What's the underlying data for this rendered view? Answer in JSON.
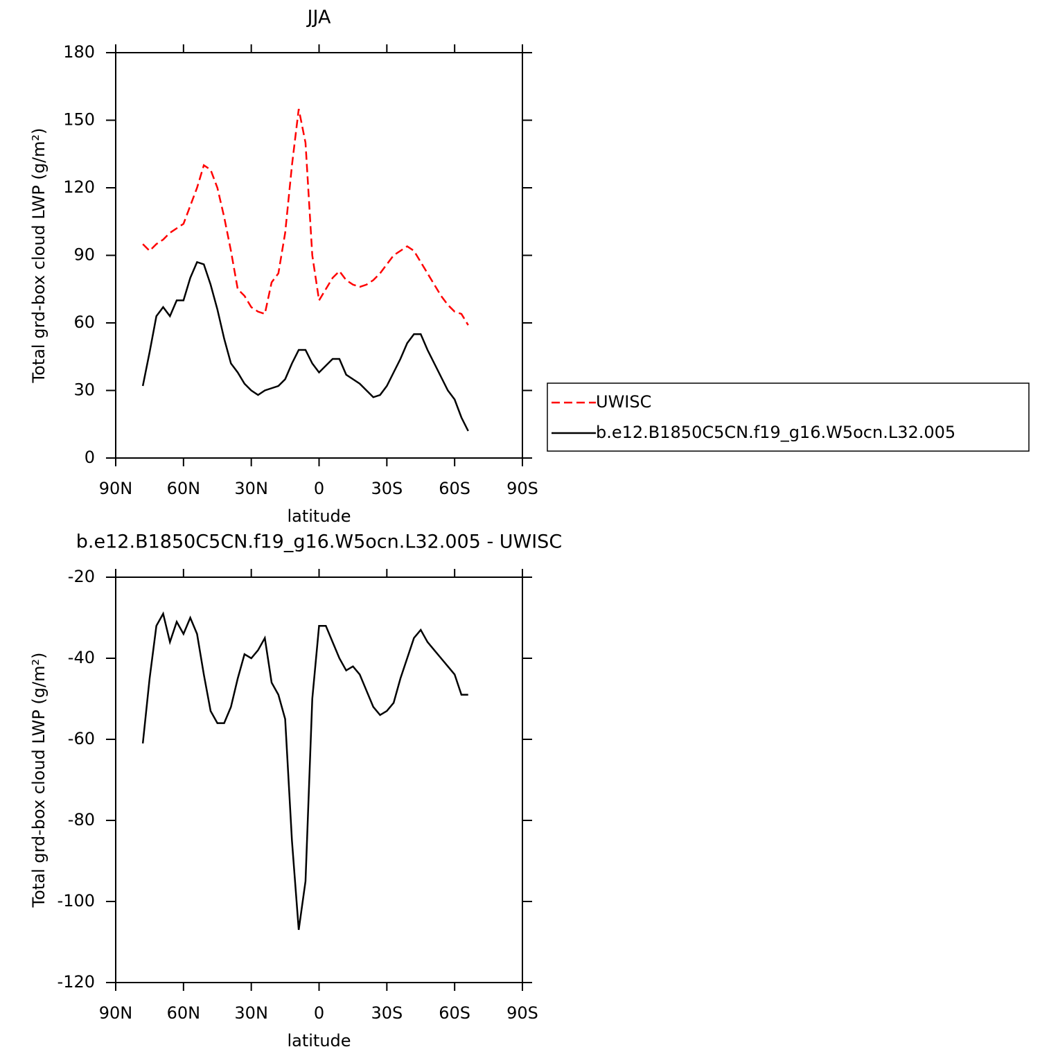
{
  "chart_data": [
    {
      "type": "line",
      "title": "JJA",
      "xlabel": "latitude",
      "ylabel": "Total grd-box cloud LWP (g/m²)",
      "x": [
        78,
        75,
        72,
        69,
        66,
        63,
        60,
        57,
        54,
        51,
        48,
        45,
        42,
        39,
        36,
        33,
        30,
        27,
        24,
        21,
        18,
        15,
        12,
        9,
        6,
        3,
        0,
        -3,
        -6,
        -9,
        -12,
        -15,
        -18,
        -21,
        -24,
        -27,
        -30,
        -33,
        -36,
        -39,
        -42,
        -45,
        -48,
        -51,
        -54,
        -57,
        -60,
        -63,
        -66
      ],
      "xlim": [
        90,
        -90
      ],
      "xticks": [
        {
          "value": 90,
          "label": "90N"
        },
        {
          "value": 60,
          "label": "60N"
        },
        {
          "value": 30,
          "label": "30N"
        },
        0,
        {
          "value": -30,
          "label": "30S"
        },
        {
          "value": -60,
          "label": "60S"
        },
        {
          "value": -90,
          "label": "90S"
        }
      ],
      "ylim": [
        0,
        180
      ],
      "yticks": [
        0,
        30,
        60,
        90,
        120,
        150,
        180
      ],
      "legend": "right",
      "series": [
        {
          "name": "UWISC",
          "color": "#ff0000",
          "linestyle": "dashed",
          "values": [
            95,
            92,
            95,
            97,
            100,
            102,
            104,
            112,
            120,
            130,
            128,
            120,
            107,
            92,
            75,
            72,
            67,
            65,
            64,
            78,
            82,
            100,
            130,
            155,
            140,
            90,
            70,
            75,
            80,
            83,
            79,
            77,
            76,
            77,
            79,
            82,
            86,
            90,
            92,
            94,
            92,
            87,
            82,
            77,
            72,
            68,
            65,
            64,
            59
          ]
        },
        {
          "name": "b.e12.B1850C5CN.f19_g16.W5ocn.L32.005",
          "color": "#000000",
          "linestyle": "solid",
          "values": [
            32,
            47,
            63,
            67,
            63,
            70,
            70,
            80,
            87,
            86,
            77,
            66,
            53,
            42,
            38,
            33,
            30,
            28,
            30,
            31,
            32,
            35,
            42,
            48,
            48,
            42,
            38,
            41,
            44,
            44,
            37,
            35,
            33,
            30,
            27,
            28,
            32,
            38,
            44,
            51,
            55,
            55,
            48,
            42,
            36,
            30,
            26,
            18,
            12
          ]
        }
      ]
    },
    {
      "type": "line",
      "title": "b.e12.B1850C5CN.f19_g16.W5ocn.L32.005 - UWISC",
      "xlabel": "latitude",
      "ylabel": "Total grd-box cloud LWP (g/m²)",
      "x": [
        78,
        75,
        72,
        69,
        66,
        63,
        60,
        57,
        54,
        51,
        48,
        45,
        42,
        39,
        36,
        33,
        30,
        27,
        24,
        21,
        18,
        15,
        12,
        9,
        6,
        3,
        0,
        -3,
        -6,
        -9,
        -12,
        -15,
        -18,
        -21,
        -24,
        -27,
        -30,
        -33,
        -36,
        -39,
        -42,
        -45,
        -48,
        -51,
        -54,
        -57,
        -60,
        -63,
        -66
      ],
      "xlim": [
        90,
        -90
      ],
      "xticks": [
        {
          "value": 90,
          "label": "90N"
        },
        {
          "value": 60,
          "label": "60N"
        },
        {
          "value": 30,
          "label": "30N"
        },
        0,
        {
          "value": -30,
          "label": "30S"
        },
        {
          "value": -60,
          "label": "60S"
        },
        {
          "value": -90,
          "label": "90S"
        }
      ],
      "ylim": [
        -120,
        -20
      ],
      "yticks": [
        -120,
        -100,
        -80,
        -60,
        -40,
        -20
      ],
      "series": [
        {
          "color": "#000000",
          "linestyle": "solid",
          "values": [
            -61,
            -45,
            -32,
            -29,
            -36,
            -31,
            -34,
            -30,
            -34,
            -44,
            -53,
            -56,
            -56,
            -52,
            -45,
            -39,
            -40,
            -38,
            -35,
            -46,
            -49,
            -55,
            -85,
            -107,
            -95,
            -50,
            -32,
            -32,
            -36,
            -40,
            -43,
            -42,
            -44,
            -48,
            -52,
            -54,
            -53,
            -51,
            -45,
            -40,
            -35,
            -33,
            -36,
            -38,
            -40,
            -42,
            -44,
            -49,
            -49
          ]
        }
      ]
    }
  ]
}
